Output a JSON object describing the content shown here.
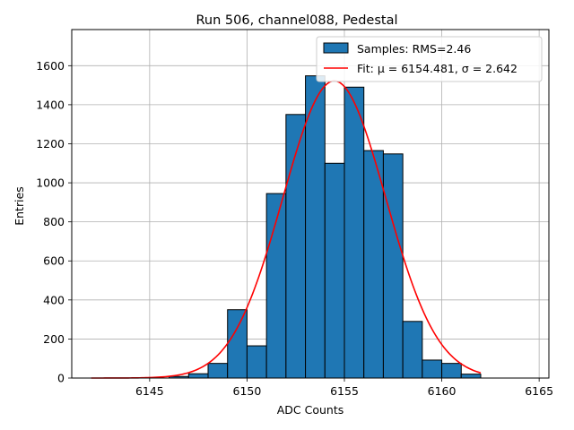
{
  "chart_data": {
    "type": "bar",
    "title": "Run 506, channel088, Pedestal",
    "xlabel": "ADC Counts",
    "ylabel": "Entries",
    "xlim": [
      6141,
      6165.5
    ],
    "ylim": [
      0,
      1785
    ],
    "xticks": [
      6145,
      6150,
      6155,
      6160,
      6165
    ],
    "yticks": [
      0,
      200,
      400,
      600,
      800,
      1000,
      1200,
      1400,
      1600
    ],
    "grid": true,
    "legend_position": "top-right",
    "histogram": {
      "name": "Samples: RMS=2.46",
      "color": "#1f77b4",
      "bin_width": 1,
      "bin_edges_start": [
        6146,
        6147,
        6148,
        6149,
        6150,
        6151,
        6152,
        6153,
        6154,
        6155,
        6156,
        6157,
        6158,
        6159,
        6160,
        6161
      ],
      "values": [
        8,
        22,
        75,
        350,
        165,
        945,
        1350,
        1548,
        1100,
        1490,
        1165,
        1148,
        290,
        92,
        75,
        20
      ]
    },
    "fit": {
      "name": "Fit: μ = 6154.481, σ = 2.642",
      "color": "#ff0000",
      "function": "gaussian",
      "mu": 6154.481,
      "sigma": 2.642,
      "amplitude": 1522,
      "x_range": [
        6142,
        6162
      ]
    }
  }
}
